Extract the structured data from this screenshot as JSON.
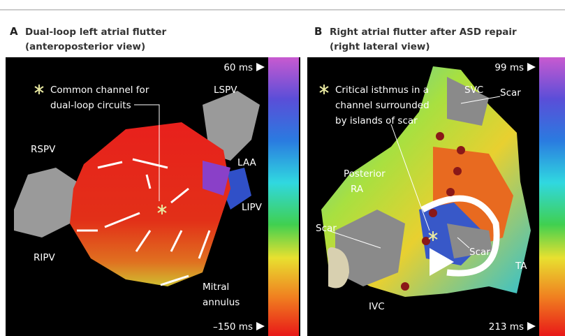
{
  "panels": [
    {
      "letter": "A",
      "title": [
        "Dual-loop left atrial flutter",
        "(anteroposterior view)"
      ],
      "scale": {
        "top": "60 ms",
        "bottom": "–150 ms"
      },
      "annotation": [
        "Common channel for",
        "dual-loop circuits"
      ],
      "labels": [
        "LSPV",
        "RSPV",
        "LAA",
        "LIPV",
        "RIPV",
        "Mitral",
        "annulus"
      ]
    },
    {
      "letter": "B",
      "title": [
        "Right atrial flutter after ASD repair",
        "(right lateral view)"
      ],
      "scale": {
        "top": "99 ms",
        "bottom": "213 ms"
      },
      "annotation": [
        "Critical isthmus in a",
        "channel surrounded",
        "by islands of scar"
      ],
      "labels": [
        "SVC",
        "Scar",
        "Posterior",
        "RA",
        "Scar",
        "Scar",
        "TA",
        "IVC"
      ]
    }
  ]
}
